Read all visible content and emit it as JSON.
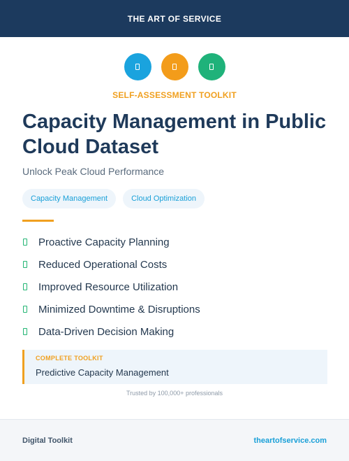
{
  "header": {
    "brand": "THE ART OF SERVICE"
  },
  "icons": [
    {
      "name": "doc-icon",
      "color": "#1aa3de"
    },
    {
      "name": "doc-icon",
      "color": "#f39c1a"
    },
    {
      "name": "doc-icon",
      "color": "#1fb27a"
    }
  ],
  "kicker": "SELF-ASSESSMENT TOOLKIT",
  "title": "Capacity Management in Public Cloud Dataset",
  "subtitle": "Unlock Peak Cloud Performance",
  "tags": [
    "Capacity Management",
    "Cloud Optimization"
  ],
  "features": [
    "Proactive Capacity Planning",
    "Reduced Operational Costs",
    "Improved Resource Utilization",
    "Minimized Downtime & Disruptions",
    "Data-Driven Decision Making"
  ],
  "toolkit": {
    "label": "COMPLETE TOOLKIT",
    "value": "Predictive Capacity Management"
  },
  "trusted": "Trusted by 100,000+ professionals",
  "footer": {
    "left": "Digital Toolkit",
    "right": "theartofservice.com"
  },
  "colors": {
    "navy": "#1c3a5e",
    "orange": "#f0a020",
    "blue": "#1aa0d8",
    "green": "#22b573"
  }
}
